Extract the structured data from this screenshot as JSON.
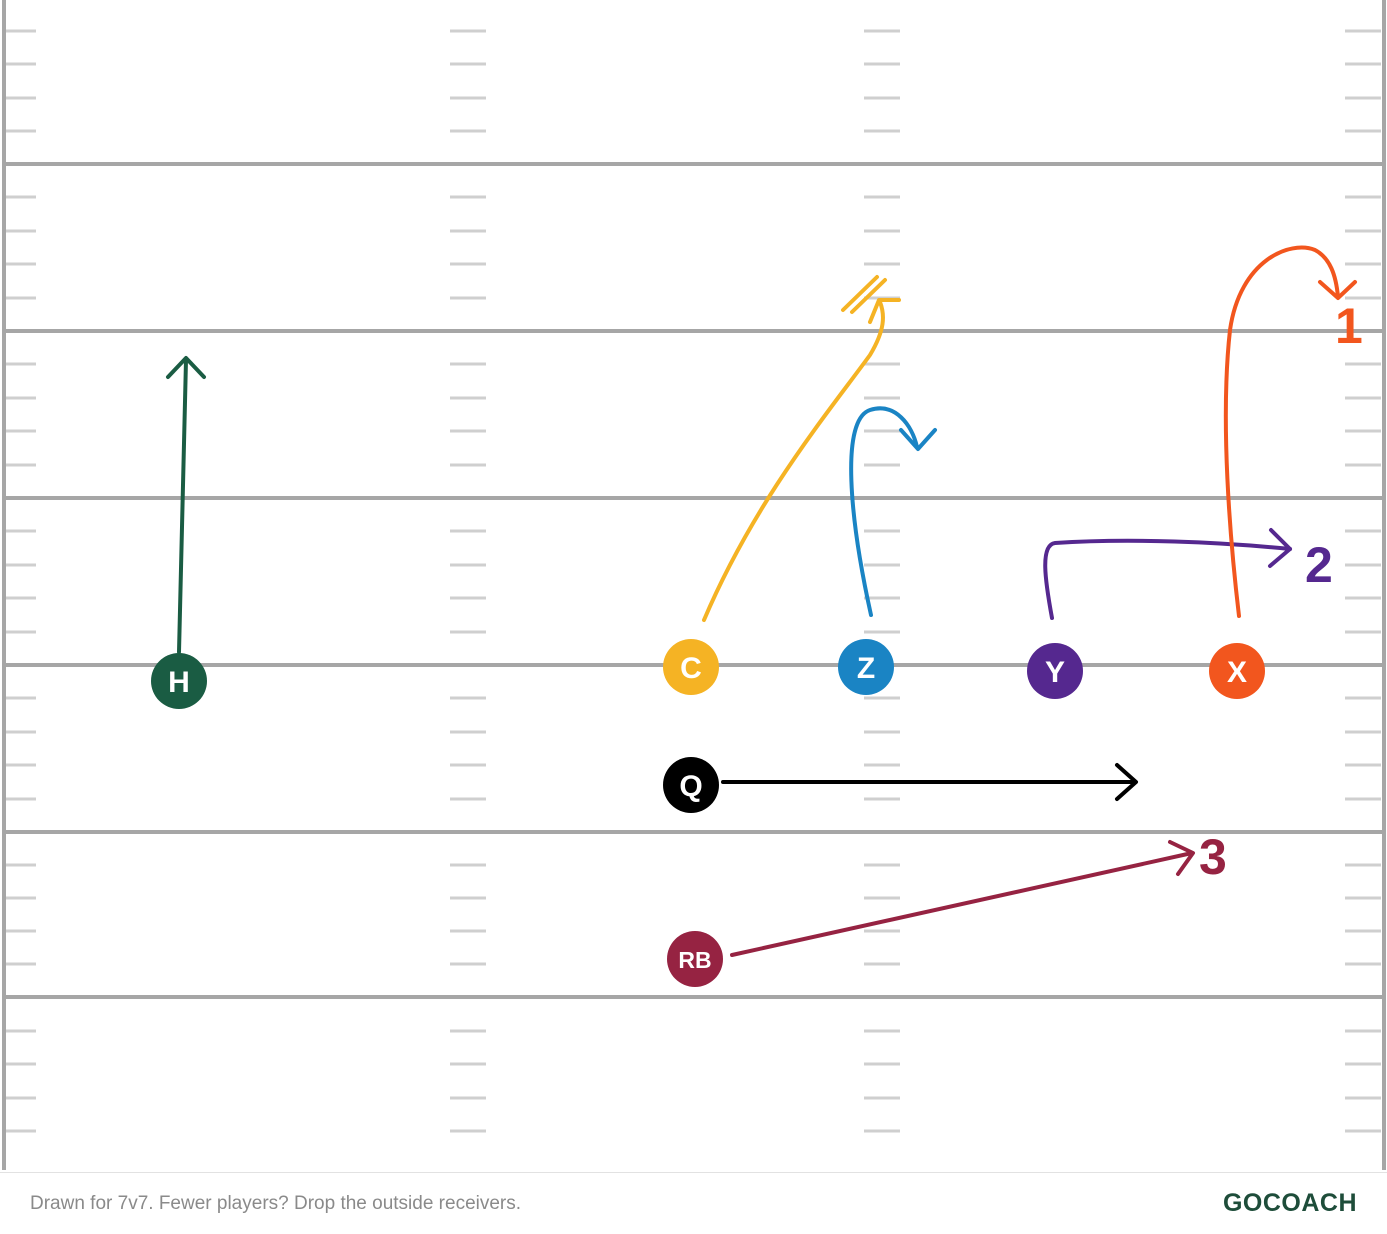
{
  "colors": {
    "H": "#1a5c43",
    "C": "#f5b324",
    "Z": "#1a84c4",
    "Y": "#55288f",
    "X": "#f2561e",
    "Q": "#000000",
    "RB": "#962342",
    "field_line": "#a6a6a6",
    "hash": "#cfcfcf"
  },
  "players": {
    "H": "H",
    "C": "C",
    "Z": "Z",
    "Y": "Y",
    "X": "X",
    "Q": "Q",
    "RB": "RB"
  },
  "progression": {
    "first": "1",
    "second": "2",
    "third": "3"
  },
  "footer": {
    "note": "Drawn for 7v7. Fewer players? Drop the outside receivers.",
    "brand": "GOCOACH"
  }
}
